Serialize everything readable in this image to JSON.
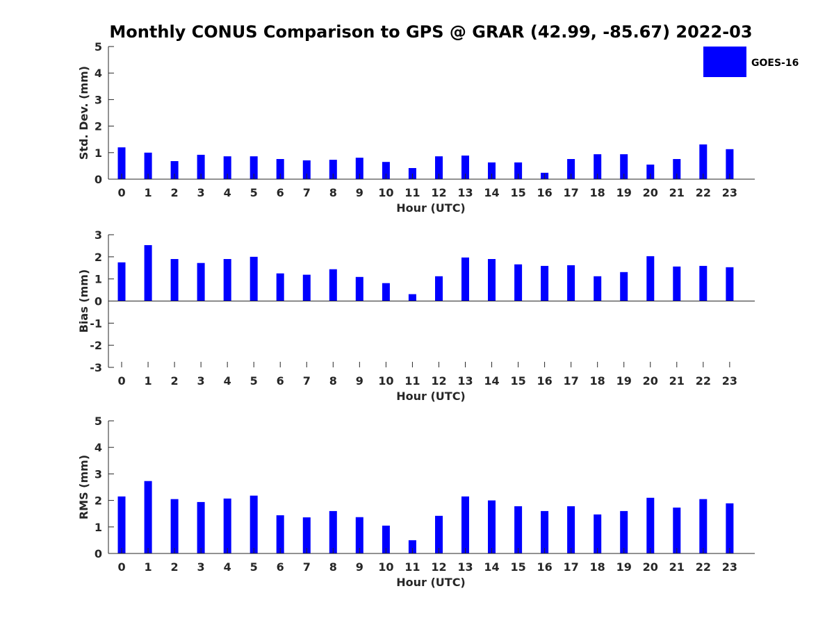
{
  "title": "Monthly CONUS Comparison to GPS @ GRAR (42.99, -85.67) 2022-03",
  "legend": {
    "label": "GOES-16",
    "color": "#0000ff",
    "placement": "top-right"
  },
  "chart_data": [
    {
      "type": "bar",
      "xlabel": "Hour (UTC)",
      "ylabel": "Std. Dev. (mm)",
      "ylim": [
        0,
        5
      ],
      "yticks": [
        "0",
        "1",
        "2",
        "3",
        "4",
        "5"
      ],
      "categories": [
        "0",
        "1",
        "2",
        "3",
        "4",
        "5",
        "6",
        "7",
        "8",
        "9",
        "10",
        "11",
        "12",
        "13",
        "14",
        "15",
        "16",
        "17",
        "18",
        "19",
        "20",
        "21",
        "22",
        "23"
      ],
      "series": [
        {
          "name": "GOES-16",
          "color": "#0000ff",
          "values": [
            1.2,
            1.0,
            0.68,
            0.92,
            0.86,
            0.86,
            0.76,
            0.71,
            0.73,
            0.81,
            0.65,
            0.42,
            0.86,
            0.89,
            0.63,
            0.63,
            0.24,
            0.76,
            0.94,
            0.94,
            0.55,
            0.76,
            1.31,
            1.13
          ]
        }
      ],
      "grid": false
    },
    {
      "type": "bar",
      "xlabel": "Hour (UTC)",
      "ylabel": "Bias (mm)",
      "ylim": [
        -3,
        3
      ],
      "yticks": [
        "-3",
        "-2",
        "-1",
        "0",
        "1",
        "2",
        "3"
      ],
      "categories": [
        "0",
        "1",
        "2",
        "3",
        "4",
        "5",
        "6",
        "7",
        "8",
        "9",
        "10",
        "11",
        "12",
        "13",
        "14",
        "15",
        "16",
        "17",
        "18",
        "19",
        "20",
        "21",
        "22",
        "23"
      ],
      "series": [
        {
          "name": "GOES-16",
          "color": "#0000ff",
          "values": [
            1.75,
            2.53,
            1.9,
            1.72,
            1.9,
            2.0,
            1.25,
            1.19,
            1.44,
            1.09,
            0.81,
            0.31,
            1.12,
            1.97,
            1.9,
            1.66,
            1.59,
            1.62,
            1.12,
            1.31,
            2.03,
            1.56,
            1.59,
            1.53
          ]
        }
      ],
      "grid": false
    },
    {
      "type": "bar",
      "xlabel": "Hour (UTC)",
      "ylabel": "RMS (mm)",
      "ylim": [
        0,
        5
      ],
      "yticks": [
        "0",
        "1",
        "2",
        "3",
        "4",
        "5"
      ],
      "categories": [
        "0",
        "1",
        "2",
        "3",
        "4",
        "5",
        "6",
        "7",
        "8",
        "9",
        "10",
        "11",
        "12",
        "13",
        "14",
        "15",
        "16",
        "17",
        "18",
        "19",
        "20",
        "21",
        "22",
        "23"
      ],
      "series": [
        {
          "name": "GOES-16",
          "color": "#0000ff",
          "values": [
            2.15,
            2.73,
            2.05,
            1.94,
            2.07,
            2.18,
            1.44,
            1.36,
            1.6,
            1.37,
            1.05,
            0.5,
            1.42,
            2.15,
            2.0,
            1.78,
            1.6,
            1.78,
            1.47,
            1.6,
            2.1,
            1.73,
            2.05,
            1.89
          ]
        }
      ],
      "grid": false
    }
  ]
}
